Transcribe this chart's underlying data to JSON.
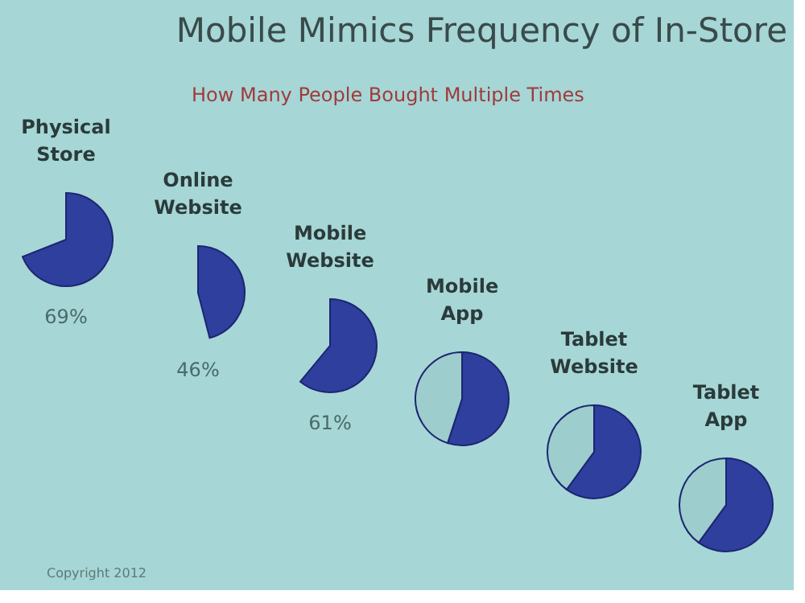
{
  "chart_data": [
    {
      "type": "other",
      "title": "Mobile Mimics Frequency of In-Store",
      "subtitle": "How Many People Bought Multiple Times",
      "annotations": [
        "Copyright 2012"
      ]
    },
    {
      "type": "pie",
      "title": "Physical Store",
      "values": [
        69
      ],
      "colors": [
        "#2f3f9e"
      ],
      "value_labels": [
        "69%"
      ]
    },
    {
      "type": "pie",
      "title": "Online Website",
      "values": [
        46
      ],
      "colors": [
        "#2f3f9e"
      ],
      "value_labels": [
        "46%"
      ]
    },
    {
      "type": "pie",
      "title": "Mobile Website",
      "values": [
        61
      ],
      "colors": [
        "#2f3f9e"
      ],
      "value_labels": [
        "61%"
      ]
    },
    {
      "type": "pie",
      "title": "Mobile App",
      "values": [
        55,
        45
      ],
      "colors": [
        "#2f3f9e",
        "#9dcdcd"
      ]
    },
    {
      "type": "pie",
      "title": "Tablet Website",
      "values": [
        60,
        40
      ],
      "colors": [
        "#2f3f9e",
        "#9dcdcd"
      ]
    },
    {
      "type": "pie",
      "title": "Tablet App",
      "values": [
        60,
        40
      ],
      "colors": [
        "#2f3f9e",
        "#9dcdcd"
      ]
    }
  ]
}
